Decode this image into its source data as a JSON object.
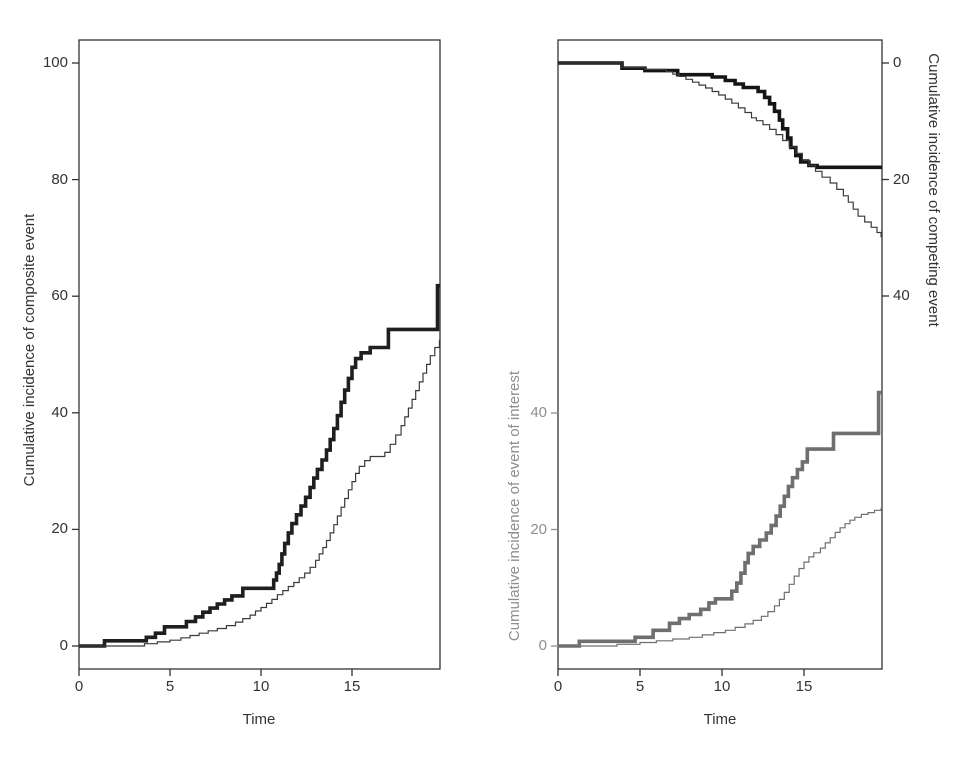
{
  "figure": {
    "background": "#ffffff",
    "description": "Two cumulative incidence step plots"
  },
  "colors": {
    "frame": "#333333",
    "axis_text": "#333333",
    "gray_axis_text": "#8e8e8e",
    "tick_mark": "#333333",
    "gray_tick_mark": "#8e8e8e"
  },
  "chart_data": [
    {
      "type": "line",
      "line_style": "step-after",
      "title": "",
      "xlabel": "Time",
      "ylabel": "Cumulative incidence of composite event",
      "xlim": [
        0,
        19.8
      ],
      "ylim": [
        -4,
        104
      ],
      "x_ticks": [
        0,
        5,
        10,
        15
      ],
      "y_ticks": [
        0,
        20,
        40,
        60,
        80,
        100
      ],
      "grid": false,
      "legend": "none",
      "series": [
        {
          "name": "composite-event-thick",
          "color": "#1f1f1f",
          "width": 3.6,
          "points": [
            [
              0,
              0
            ],
            [
              1.4,
              0.9
            ],
            [
              3.7,
              1.5
            ],
            [
              4.2,
              2.2
            ],
            [
              4.7,
              3.3
            ],
            [
              5.9,
              4.2
            ],
            [
              6.4,
              5.0
            ],
            [
              6.8,
              5.8
            ],
            [
              7.2,
              6.5
            ],
            [
              7.6,
              7.2
            ],
            [
              8.0,
              7.9
            ],
            [
              8.4,
              8.6
            ],
            [
              9.0,
              9.9
            ],
            [
              10.7,
              11.3
            ],
            [
              10.85,
              12.5
            ],
            [
              11.0,
              14.0
            ],
            [
              11.15,
              15.8
            ],
            [
              11.3,
              17.6
            ],
            [
              11.5,
              19.4
            ],
            [
              11.7,
              21.0
            ],
            [
              11.95,
              22.5
            ],
            [
              12.2,
              24.0
            ],
            [
              12.45,
              25.5
            ],
            [
              12.7,
              27.2
            ],
            [
              12.9,
              28.8
            ],
            [
              13.1,
              30.3
            ],
            [
              13.35,
              31.9
            ],
            [
              13.6,
              33.6
            ],
            [
              13.8,
              35.4
            ],
            [
              14.0,
              37.3
            ],
            [
              14.2,
              39.5
            ],
            [
              14.4,
              41.8
            ],
            [
              14.6,
              43.9
            ],
            [
              14.8,
              45.9
            ],
            [
              15.0,
              47.8
            ],
            [
              15.2,
              49.3
            ],
            [
              15.5,
              50.3
            ],
            [
              16.0,
              51.2
            ],
            [
              17.0,
              54.3
            ],
            [
              19.7,
              61.8
            ]
          ]
        },
        {
          "name": "composite-event-thin",
          "color": "#3a3a3a",
          "width": 1.2,
          "points": [
            [
              0,
              0
            ],
            [
              3.6,
              0.4
            ],
            [
              4.3,
              0.7
            ],
            [
              5.0,
              1.0
            ],
            [
              5.6,
              1.4
            ],
            [
              6.1,
              1.8
            ],
            [
              6.6,
              2.2
            ],
            [
              7.1,
              2.6
            ],
            [
              7.6,
              3.0
            ],
            [
              8.1,
              3.5
            ],
            [
              8.6,
              4.1
            ],
            [
              9.0,
              4.7
            ],
            [
              9.4,
              5.3
            ],
            [
              9.7,
              6.0
            ],
            [
              10.0,
              6.6
            ],
            [
              10.3,
              7.3
            ],
            [
              10.6,
              8.0
            ],
            [
              10.9,
              8.8
            ],
            [
              11.2,
              9.5
            ],
            [
              11.5,
              10.2
            ],
            [
              11.8,
              10.9
            ],
            [
              12.1,
              11.7
            ],
            [
              12.4,
              12.5
            ],
            [
              12.7,
              13.5
            ],
            [
              13.0,
              14.7
            ],
            [
              13.2,
              15.8
            ],
            [
              13.4,
              16.9
            ],
            [
              13.6,
              18.1
            ],
            [
              13.8,
              19.4
            ],
            [
              14.0,
              20.8
            ],
            [
              14.2,
              22.3
            ],
            [
              14.4,
              23.8
            ],
            [
              14.6,
              25.3
            ],
            [
              14.8,
              26.8
            ],
            [
              15.0,
              28.2
            ],
            [
              15.2,
              29.6
            ],
            [
              15.4,
              30.8
            ],
            [
              15.7,
              31.8
            ],
            [
              16.0,
              32.5
            ],
            [
              16.8,
              33.2
            ],
            [
              17.1,
              34.6
            ],
            [
              17.4,
              36.2
            ],
            [
              17.7,
              37.8
            ],
            [
              17.9,
              39.3
            ],
            [
              18.1,
              40.8
            ],
            [
              18.3,
              42.3
            ],
            [
              18.5,
              43.8
            ],
            [
              18.7,
              45.3
            ],
            [
              18.9,
              46.8
            ],
            [
              19.1,
              48.3
            ],
            [
              19.3,
              49.8
            ],
            [
              19.55,
              51.2
            ],
            [
              19.8,
              52.4
            ]
          ]
        }
      ]
    },
    {
      "type": "line",
      "line_style": "step-after",
      "title": "",
      "xlabel": "Time",
      "ylabel_left": "Cumulative incidence of event of interest",
      "ylabel_right": "Cumulative incidence of competing event",
      "xlim": [
        0,
        19.8
      ],
      "ylim_left": [
        -4,
        104
      ],
      "ylim_right": [
        -4,
        104
      ],
      "y_right_orientation": "increases-downward",
      "x_ticks": [
        0,
        5,
        10,
        15
      ],
      "y_ticks_left": [
        0,
        20,
        40
      ],
      "y_ticks_right": [
        0,
        20,
        40
      ],
      "grid": false,
      "legend": "none",
      "series": [
        {
          "name": "event-of-interest-thick",
          "axis": "left",
          "color": "#6f6f6f",
          "width": 3.6,
          "points": [
            [
              0,
              0
            ],
            [
              1.3,
              0.8
            ],
            [
              4.7,
              1.5
            ],
            [
              5.8,
              2.7
            ],
            [
              6.8,
              3.9
            ],
            [
              7.4,
              4.7
            ],
            [
              8.0,
              5.4
            ],
            [
              8.7,
              6.3
            ],
            [
              9.2,
              7.4
            ],
            [
              9.6,
              8.1
            ],
            [
              10.6,
              9.4
            ],
            [
              10.9,
              10.8
            ],
            [
              11.15,
              12.5
            ],
            [
              11.4,
              14.3
            ],
            [
              11.6,
              15.9
            ],
            [
              11.9,
              17.1
            ],
            [
              12.3,
              18.2
            ],
            [
              12.7,
              19.4
            ],
            [
              13.0,
              20.7
            ],
            [
              13.3,
              22.3
            ],
            [
              13.55,
              24.0
            ],
            [
              13.8,
              25.7
            ],
            [
              14.05,
              27.4
            ],
            [
              14.3,
              28.9
            ],
            [
              14.6,
              30.3
            ],
            [
              14.9,
              31.6
            ],
            [
              15.2,
              33.8
            ],
            [
              16.8,
              36.5
            ],
            [
              19.55,
              43.5
            ]
          ]
        },
        {
          "name": "event-of-interest-thin",
          "axis": "left",
          "color": "#6f6f6f",
          "width": 1.2,
          "points": [
            [
              0,
              0
            ],
            [
              3.6,
              0.3
            ],
            [
              5.0,
              0.6
            ],
            [
              6.0,
              0.9
            ],
            [
              7.0,
              1.2
            ],
            [
              8.0,
              1.5
            ],
            [
              8.8,
              1.9
            ],
            [
              9.5,
              2.3
            ],
            [
              10.2,
              2.7
            ],
            [
              10.8,
              3.2
            ],
            [
              11.4,
              3.8
            ],
            [
              11.9,
              4.4
            ],
            [
              12.4,
              5.1
            ],
            [
              12.8,
              5.9
            ],
            [
              13.2,
              6.9
            ],
            [
              13.5,
              8.0
            ],
            [
              13.8,
              9.2
            ],
            [
              14.1,
              10.6
            ],
            [
              14.4,
              12.0
            ],
            [
              14.7,
              13.3
            ],
            [
              15.0,
              14.4
            ],
            [
              15.3,
              15.3
            ],
            [
              15.6,
              16.0
            ],
            [
              16.0,
              16.8
            ],
            [
              16.3,
              17.7
            ],
            [
              16.6,
              18.6
            ],
            [
              16.9,
              19.5
            ],
            [
              17.2,
              20.3
            ],
            [
              17.5,
              21.0
            ],
            [
              17.8,
              21.6
            ],
            [
              18.1,
              22.1
            ],
            [
              18.5,
              22.6
            ],
            [
              18.9,
              22.9
            ],
            [
              19.3,
              23.3
            ],
            [
              19.7,
              23.6
            ]
          ]
        },
        {
          "name": "competing-event-thick",
          "axis": "right",
          "color": "#151515",
          "width": 3.6,
          "points": [
            [
              0,
              0
            ],
            [
              3.9,
              0.9
            ],
            [
              5.3,
              1.3
            ],
            [
              7.3,
              2.0
            ],
            [
              9.4,
              2.4
            ],
            [
              10.2,
              3.0
            ],
            [
              10.8,
              3.6
            ],
            [
              11.3,
              4.2
            ],
            [
              12.2,
              4.9
            ],
            [
              12.6,
              5.9
            ],
            [
              12.9,
              7.0
            ],
            [
              13.2,
              8.3
            ],
            [
              13.5,
              9.8
            ],
            [
              13.7,
              11.3
            ],
            [
              14.0,
              12.9
            ],
            [
              14.2,
              14.5
            ],
            [
              14.5,
              15.9
            ],
            [
              14.8,
              17.0
            ],
            [
              15.3,
              17.6
            ],
            [
              15.8,
              17.9
            ]
          ]
        },
        {
          "name": "competing-event-thin",
          "axis": "right",
          "color": "#3a3a3a",
          "width": 1.2,
          "points": [
            [
              0,
              0
            ],
            [
              3.9,
              0.8
            ],
            [
              5.3,
              1.1
            ],
            [
              6.6,
              1.5
            ],
            [
              7.0,
              1.9
            ],
            [
              7.4,
              2.3
            ],
            [
              7.8,
              2.8
            ],
            [
              8.2,
              3.3
            ],
            [
              8.6,
              3.8
            ],
            [
              9.0,
              4.3
            ],
            [
              9.4,
              4.9
            ],
            [
              9.8,
              5.5
            ],
            [
              10.2,
              6.2
            ],
            [
              10.6,
              6.9
            ],
            [
              11.0,
              7.7
            ],
            [
              11.4,
              8.5
            ],
            [
              11.8,
              9.4
            ],
            [
              12.1,
              9.9
            ],
            [
              12.5,
              10.6
            ],
            [
              12.9,
              11.4
            ],
            [
              13.3,
              12.3
            ],
            [
              13.7,
              13.3
            ],
            [
              14.1,
              14.4
            ],
            [
              14.5,
              15.5
            ],
            [
              14.9,
              16.6
            ],
            [
              15.3,
              17.6
            ],
            [
              15.7,
              18.6
            ],
            [
              16.1,
              19.6
            ],
            [
              16.6,
              20.6
            ],
            [
              17.0,
              21.7
            ],
            [
              17.4,
              22.8
            ],
            [
              17.7,
              23.9
            ],
            [
              18.0,
              25.1
            ],
            [
              18.3,
              26.3
            ],
            [
              18.7,
              27.3
            ],
            [
              19.1,
              28.2
            ],
            [
              19.45,
              29.1
            ],
            [
              19.7,
              29.8
            ]
          ]
        }
      ]
    }
  ]
}
